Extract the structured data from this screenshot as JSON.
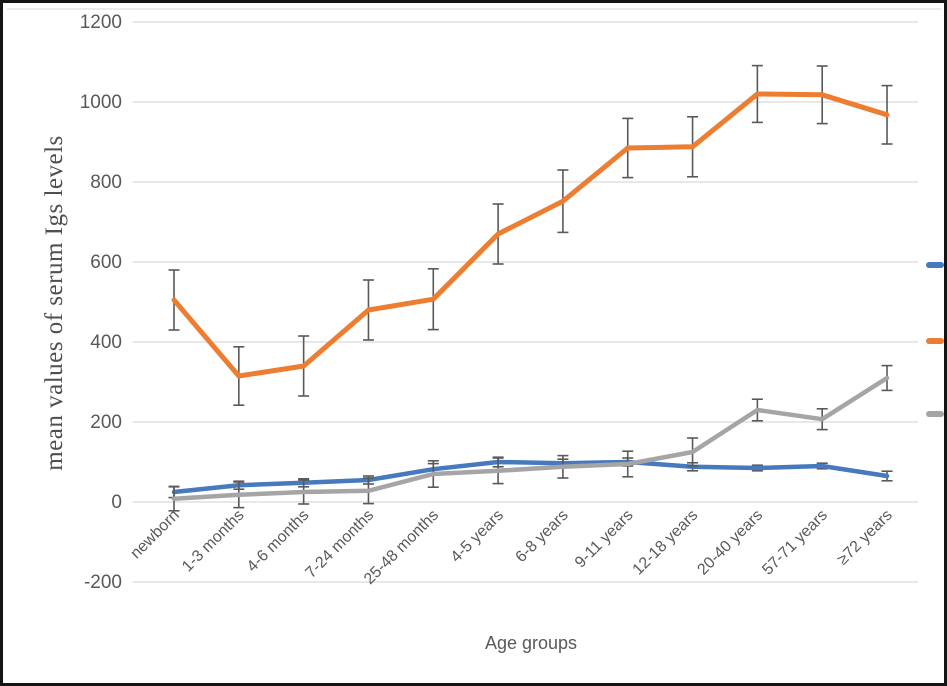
{
  "chart_data": {
    "type": "line",
    "title": "",
    "xlabel": "Age groups",
    "ylabel": "mean values of serum Igs levels",
    "ylim": [
      -200,
      1200
    ],
    "yticks": [
      1200,
      1000,
      800,
      600,
      400,
      200,
      0,
      -200
    ],
    "grid": "horizontal",
    "error_bars": true,
    "legend": {
      "position": "right",
      "note": "legend text cropped outside right image edge; only colored line swatches visible",
      "swatches": [
        "blue",
        "orange",
        "gray"
      ]
    },
    "categories": [
      "newborn",
      "1-3 months",
      "4-6 months",
      "7-24 months",
      "25-48 months",
      "4-5 years",
      "6-8 years",
      "9-11 years",
      "12-18 years",
      "20-40 years",
      "57-71 years",
      "≥72 years"
    ],
    "series": [
      {
        "id": "blue",
        "color": "#4679BD",
        "values": [
          25,
          42,
          48,
          55,
          82,
          100,
          97,
          100,
          88,
          85,
          90,
          65
        ],
        "errors": [
          14,
          10,
          10,
          10,
          14,
          12,
          10,
          10,
          10,
          7,
          7,
          12
        ]
      },
      {
        "id": "orange",
        "color": "#ED7D31",
        "values": [
          505,
          315,
          340,
          480,
          507,
          670,
          752,
          885,
          888,
          1020,
          1018,
          968
        ],
        "errors": [
          75,
          73,
          75,
          75,
          76,
          75,
          78,
          74,
          75,
          71,
          72,
          73
        ]
      },
      {
        "id": "gray",
        "color": "#A5A5A5",
        "values": [
          8,
          18,
          25,
          28,
          70,
          78,
          88,
          95,
          125,
          230,
          207,
          310
        ],
        "errors": [
          30,
          32,
          30,
          32,
          33,
          32,
          28,
          32,
          35,
          27,
          26,
          31
        ]
      }
    ],
    "colors": {
      "axis_text": "#595959",
      "gridline": "#D9D9D9",
      "error_bar": "#595959",
      "frame_border": "#141414"
    }
  }
}
